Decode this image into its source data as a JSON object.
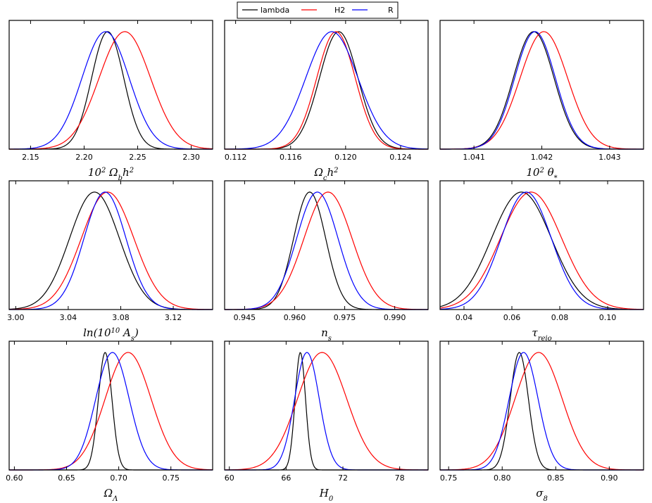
{
  "chart_data": [
    {
      "type": "line",
      "xlabel": "10²Ωbh²",
      "xlim": [
        2.13,
        2.32
      ],
      "xticks": [
        2.15,
        2.2,
        2.25,
        2.3
      ],
      "tick_labels": [
        "2.15",
        "2.20",
        "2.25",
        "2.30"
      ],
      "series": [
        {
          "name": "lambda",
          "color": "#000000",
          "mean": 2.222,
          "sigma": 0.015
        },
        {
          "name": "H2",
          "color": "#ff0000",
          "mean": 2.238,
          "sigma": 0.024
        },
        {
          "name": "R",
          "color": "#0000ff",
          "mean": 2.22,
          "sigma": 0.022
        }
      ]
    },
    {
      "type": "line",
      "xlabel": "Ωch²",
      "xlim": [
        0.1112,
        0.126
      ],
      "xticks": [
        0.112,
        0.116,
        0.12,
        0.124
      ],
      "tick_labels": [
        "0.112",
        "0.116",
        "0.120",
        "0.124"
      ],
      "series": [
        {
          "name": "lambda",
          "color": "#000000",
          "mean": 0.1195,
          "sigma": 0.0014
        },
        {
          "name": "H2",
          "color": "#ff0000",
          "mean": 0.1193,
          "sigma": 0.0014
        },
        {
          "name": "R",
          "color": "#0000ff",
          "mean": 0.119,
          "sigma": 0.0019
        }
      ]
    },
    {
      "type": "line",
      "xlabel": "10²θ*",
      "xlim": [
        1.0405,
        1.0435
      ],
      "xticks": [
        1.041,
        1.042,
        1.043
      ],
      "tick_labels": [
        "1.041",
        "1.042",
        "1.043"
      ],
      "series": [
        {
          "name": "lambda",
          "color": "#000000",
          "mean": 1.04188,
          "sigma": 0.0003
        },
        {
          "name": "H2",
          "color": "#ff0000",
          "mean": 1.04203,
          "sigma": 0.00035
        },
        {
          "name": "R",
          "color": "#0000ff",
          "mean": 1.0419,
          "sigma": 0.0003
        }
      ]
    },
    {
      "type": "line",
      "xlabel": "ln(10¹⁰As)",
      "xlim": [
        2.995,
        3.15
      ],
      "xticks": [
        3.0,
        3.04,
        3.08,
        3.12
      ],
      "tick_labels": [
        "3.00",
        "3.04",
        "3.08",
        "3.12"
      ],
      "series": [
        {
          "name": "lambda",
          "color": "#000000",
          "mean": 3.06,
          "sigma": 0.019
        },
        {
          "name": "H2",
          "color": "#ff0000",
          "mean": 3.07,
          "sigma": 0.02
        },
        {
          "name": "R",
          "color": "#0000ff",
          "mean": 3.068,
          "sigma": 0.016
        }
      ]
    },
    {
      "type": "line",
      "xlabel": "ns",
      "xlim": [
        0.939,
        1.0
      ],
      "xticks": [
        0.945,
        0.96,
        0.975,
        0.99
      ],
      "tick_labels": [
        "0.945",
        "0.960",
        "0.975",
        "0.990"
      ],
      "series": [
        {
          "name": "lambda",
          "color": "#000000",
          "mean": 0.9645,
          "sigma": 0.0048
        },
        {
          "name": "H2",
          "color": "#ff0000",
          "mean": 0.97,
          "sigma": 0.0072
        },
        {
          "name": "R",
          "color": "#0000ff",
          "mean": 0.9668,
          "sigma": 0.0062
        }
      ]
    },
    {
      "type": "line",
      "xlabel": "τreio",
      "xlim": [
        0.03,
        0.115
      ],
      "xticks": [
        0.04,
        0.06,
        0.08,
        0.1
      ],
      "tick_labels": [
        "0.04",
        "0.06",
        "0.08",
        "0.10"
      ],
      "series": [
        {
          "name": "lambda",
          "color": "#000000",
          "mean": 0.064,
          "sigma": 0.0125
        },
        {
          "name": "H2",
          "color": "#ff0000",
          "mean": 0.068,
          "sigma": 0.0128
        },
        {
          "name": "R",
          "color": "#0000ff",
          "mean": 0.066,
          "sigma": 0.0105
        }
      ]
    },
    {
      "type": "line",
      "xlabel": "ΩΛ",
      "xlim": [
        0.595,
        0.79
      ],
      "xticks": [
        0.6,
        0.65,
        0.7,
        0.75
      ],
      "tick_labels": [
        "0.60",
        "0.65",
        "0.70",
        "0.75"
      ],
      "series": [
        {
          "name": "lambda",
          "color": "#000000",
          "mean": 0.687,
          "sigma": 0.0065
        },
        {
          "name": "H2",
          "color": "#ff0000",
          "mean": 0.709,
          "sigma": 0.022
        },
        {
          "name": "R",
          "color": "#0000ff",
          "mean": 0.694,
          "sigma": 0.016
        }
      ]
    },
    {
      "type": "line",
      "xlabel": "H0",
      "xlim": [
        59.5,
        81
      ],
      "xticks": [
        60,
        66,
        72,
        78
      ],
      "tick_labels": [
        "60",
        "66",
        "72",
        "78"
      ],
      "series": [
        {
          "name": "lambda",
          "color": "#000000",
          "mean": 67.5,
          "sigma": 0.55
        },
        {
          "name": "H2",
          "color": "#ff0000",
          "mean": 69.8,
          "sigma": 2.6
        },
        {
          "name": "R",
          "color": "#0000ff",
          "mean": 68.2,
          "sigma": 1.3
        }
      ]
    },
    {
      "type": "line",
      "xlabel": "σ8",
      "xlim": [
        0.742,
        0.932
      ],
      "xticks": [
        0.75,
        0.8,
        0.85,
        0.9
      ],
      "tick_labels": [
        "0.75",
        "0.80",
        "0.85",
        "0.90"
      ],
      "series": [
        {
          "name": "lambda",
          "color": "#000000",
          "mean": 0.816,
          "sigma": 0.0085
        },
        {
          "name": "H2",
          "color": "#ff0000",
          "mean": 0.834,
          "sigma": 0.022
        },
        {
          "name": "R",
          "color": "#0000ff",
          "mean": 0.82,
          "sigma": 0.0135
        }
      ]
    }
  ],
  "legend": {
    "entries": [
      {
        "label": "lambda",
        "color": "#000000"
      },
      {
        "label": "H2",
        "color": "#ff0000"
      },
      {
        "label": "R",
        "color": "#0000ff"
      }
    ]
  }
}
